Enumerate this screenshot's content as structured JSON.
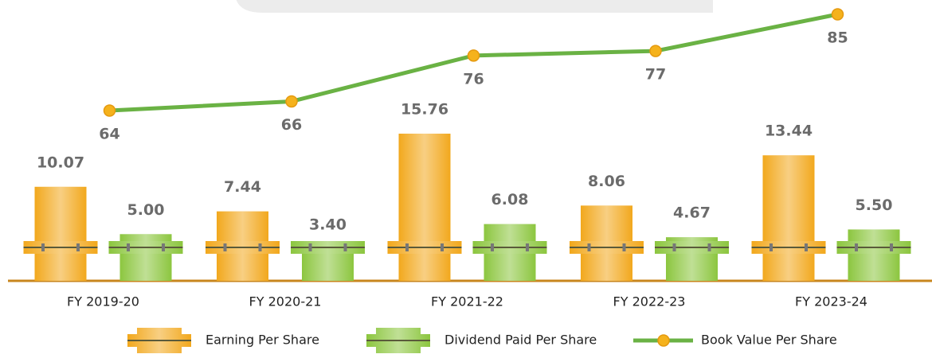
{
  "chart_data": {
    "type": "combo",
    "categories": [
      "FY 2019-20",
      "FY 2020-21",
      "FY 2021-22",
      "FY 2022-23",
      "FY 2023-24"
    ],
    "series": [
      {
        "name": "Earning Per Share",
        "type": "bar",
        "color": "#f2a81d",
        "values": [
          10.07,
          7.44,
          15.76,
          8.06,
          13.44
        ]
      },
      {
        "name": "Dividend Paid Per Share",
        "type": "bar",
        "color": "#8cc63f",
        "values": [
          5,
          3.4,
          6.08,
          4.67,
          5.5
        ],
        "value_labels": [
          "5.00",
          "3.40",
          "6.08",
          "4.67",
          "5.50"
        ]
      },
      {
        "name": "Book Value Per Share",
        "type": "line",
        "color": "#6ab244",
        "marker_color": "#f5b21c",
        "values": [
          64,
          66,
          76,
          77,
          85
        ]
      }
    ]
  }
}
